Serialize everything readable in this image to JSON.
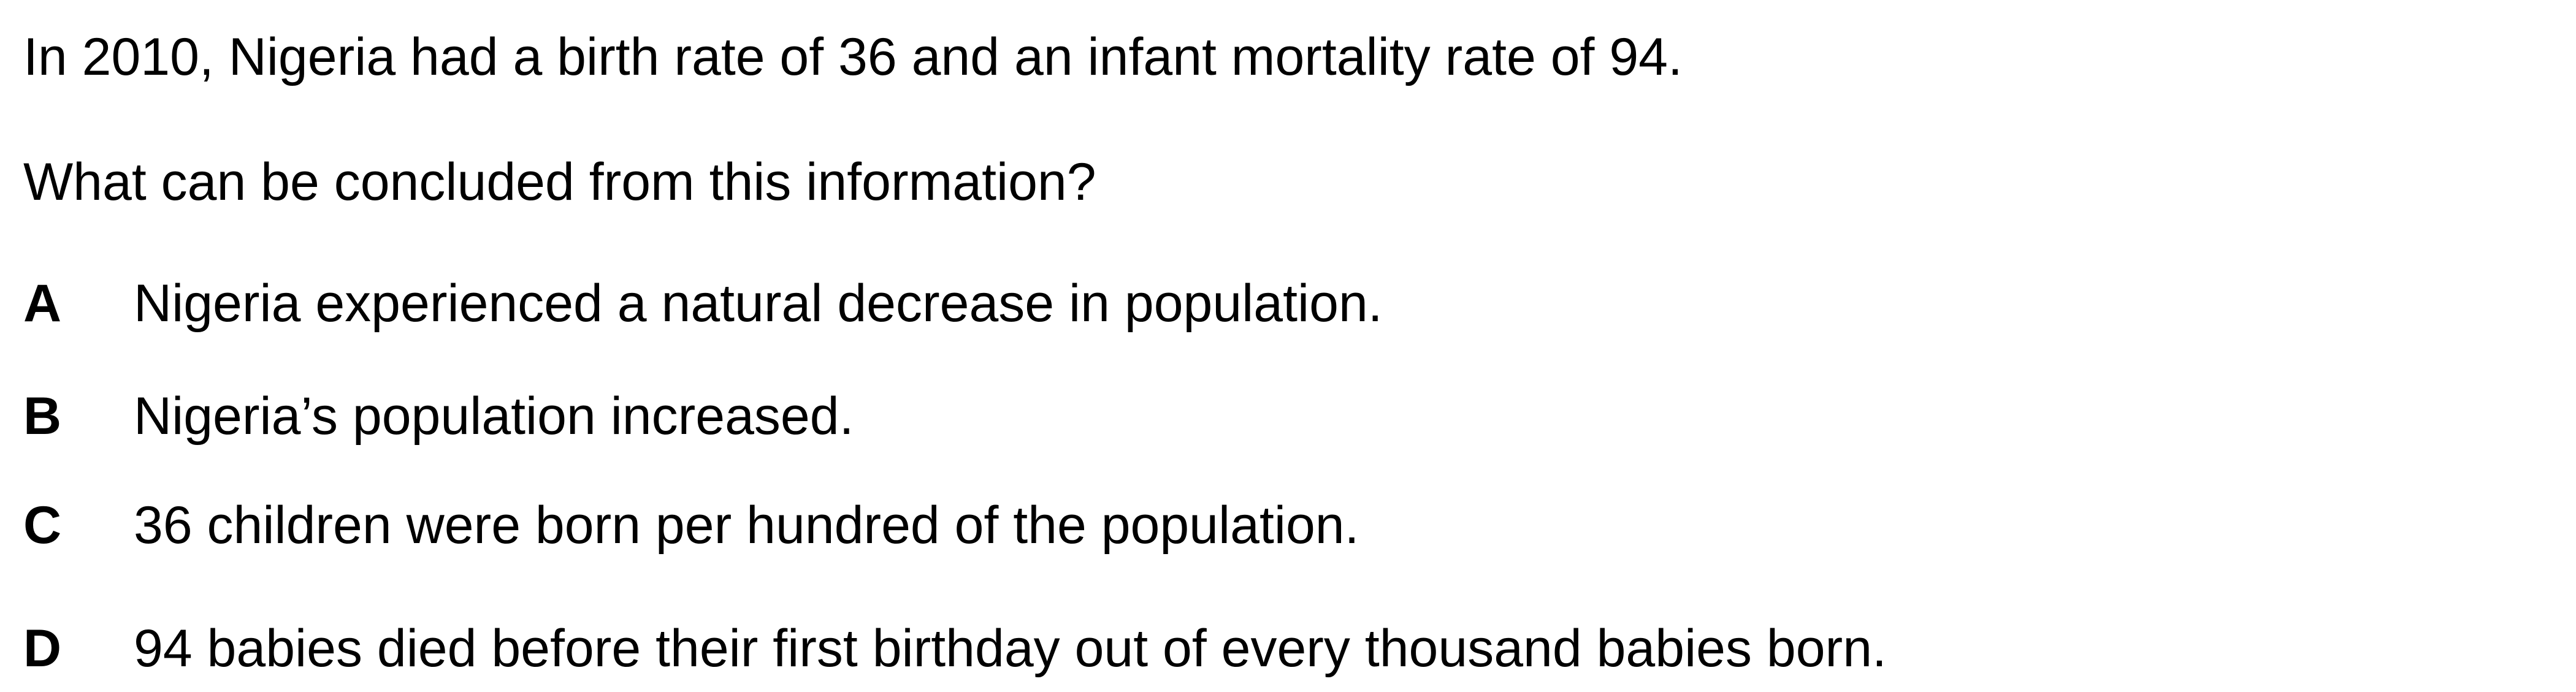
{
  "question": {
    "stem_line_1": "In 2010, Nigeria had a birth rate of 36 and an infant mortality rate of 94.",
    "stem_line_2": "What can be concluded from this information?",
    "options": [
      {
        "letter": "A",
        "text": "Nigeria experienced a natural decrease in population."
      },
      {
        "letter": "B",
        "text": "Nigeria’s population increased."
      },
      {
        "letter": "C",
        "text": "36 children were born per hundred of the population."
      },
      {
        "letter": "D",
        "text": "94 babies died before their first birthday out of every thousand babies born."
      }
    ]
  }
}
